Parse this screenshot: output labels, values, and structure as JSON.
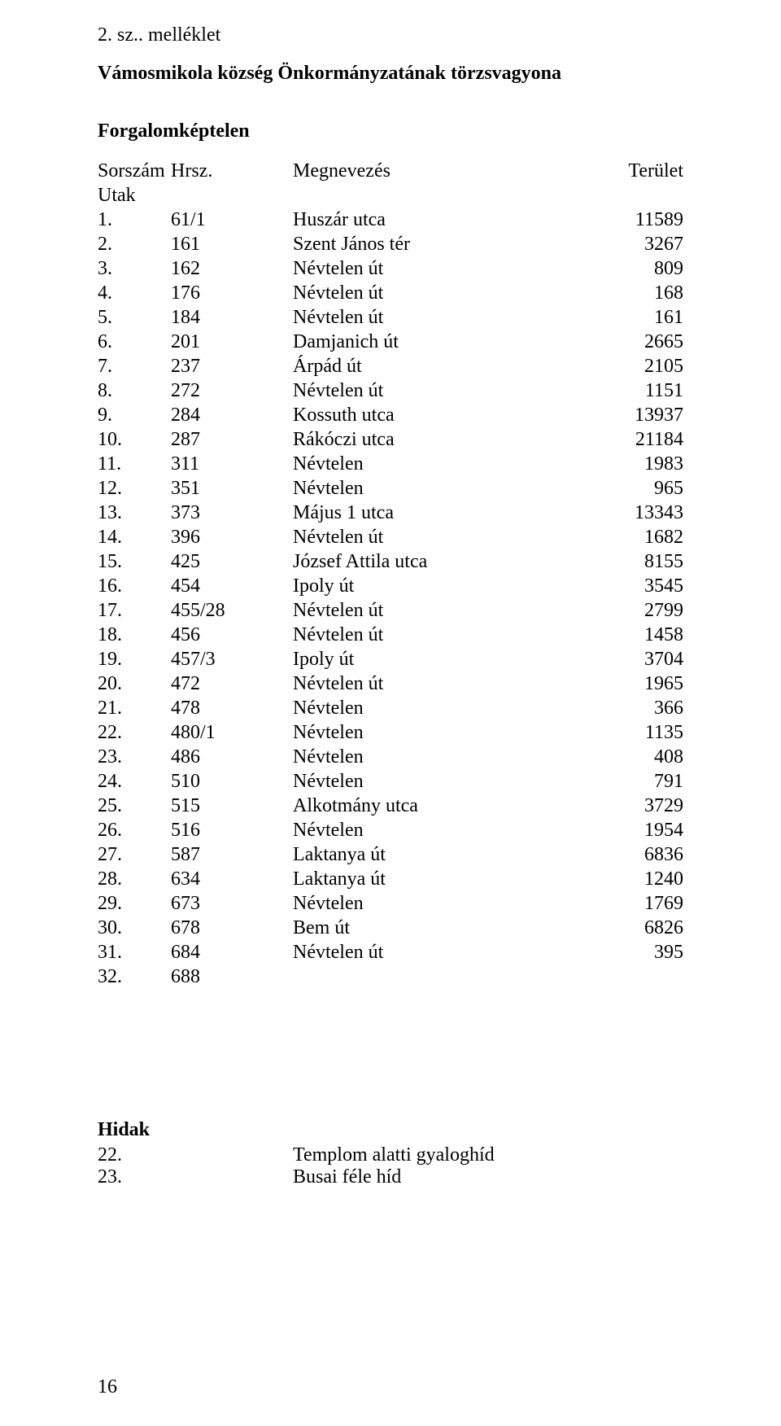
{
  "page": {
    "number": "16",
    "attachment_line": "2. sz.. melléklet",
    "title": "Vámosmikola község Önkormányzatának törzsvagyona",
    "section": "Forgalomképtelen"
  },
  "colors": {
    "text": "#000000",
    "background": "#ffffff"
  },
  "table": {
    "headers": {
      "sorszam": "Sorszám",
      "hrsz": "Hrsz.",
      "megnevezes": "Megnevezés",
      "terulet": "Terület"
    },
    "utak_label": "Utak",
    "rows": [
      {
        "n": "1.",
        "hrsz": "61/1",
        "name": "Huszár utca",
        "area": "11589"
      },
      {
        "n": "2.",
        "hrsz": "161",
        "name": "Szent János tér",
        "area": "3267"
      },
      {
        "n": "3.",
        "hrsz": "162",
        "name": "Névtelen út",
        "area": "809"
      },
      {
        "n": "4.",
        "hrsz": "176",
        "name": "Névtelen út",
        "area": "168"
      },
      {
        "n": "5.",
        "hrsz": "184",
        "name": "Névtelen út",
        "area": "161"
      },
      {
        "n": "6.",
        "hrsz": "201",
        "name": "Damjanich út",
        "area": "2665"
      },
      {
        "n": "7.",
        "hrsz": "237",
        "name": "Árpád út",
        "area": "2105"
      },
      {
        "n": "8.",
        "hrsz": "272",
        "name": "Névtelen út",
        "area": "1151"
      },
      {
        "n": "9.",
        "hrsz": "284",
        "name": "Kossuth utca",
        "area": "13937"
      },
      {
        "n": "10.",
        "hrsz": "287",
        "name": "Rákóczi utca",
        "area": "21184"
      },
      {
        "n": "11.",
        "hrsz": "311",
        "name": "Névtelen",
        "area": "1983"
      },
      {
        "n": "12.",
        "hrsz": "351",
        "name": "Névtelen",
        "area": "965"
      },
      {
        "n": "13.",
        "hrsz": "373",
        "name": "Május 1 utca",
        "area": "13343"
      },
      {
        "n": "14.",
        "hrsz": "396",
        "name": "Névtelen út",
        "area": "1682"
      },
      {
        "n": "15.",
        "hrsz": "425",
        "name": "József Attila utca",
        "area": "8155"
      },
      {
        "n": "16.",
        "hrsz": "454",
        "name": "Ipoly út",
        "area": "3545"
      },
      {
        "n": "17.",
        "hrsz": "455/28",
        "name": "Névtelen út",
        "area": "2799"
      },
      {
        "n": "18.",
        "hrsz": "456",
        "name": "Névtelen út",
        "area": "1458"
      },
      {
        "n": "19.",
        "hrsz": "457/3",
        "name": "Ipoly út",
        "area": "3704"
      },
      {
        "n": "20.",
        "hrsz": "472",
        "name": "Névtelen út",
        "area": "1965"
      },
      {
        "n": "21.",
        "hrsz": "478",
        "name": "Névtelen",
        "area": "366"
      },
      {
        "n": "22.",
        "hrsz": "480/1",
        "name": "Névtelen",
        "area": "1135"
      },
      {
        "n": "23.",
        "hrsz": "486",
        "name": "Névtelen",
        "area": "408"
      },
      {
        "n": "24.",
        "hrsz": "510",
        "name": "Névtelen",
        "area": "791"
      },
      {
        "n": "25.",
        "hrsz": "515",
        "name": "Alkotmány utca",
        "area": "3729"
      },
      {
        "n": "26.",
        "hrsz": "516",
        "name": "Névtelen",
        "area": "1954"
      },
      {
        "n": "27.",
        "hrsz": "587",
        "name": "Laktanya út",
        "area": "6836"
      },
      {
        "n": "28.",
        "hrsz": "634",
        "name": "Laktanya út",
        "area": "1240"
      },
      {
        "n": "29.",
        "hrsz": "673",
        "name": "Névtelen",
        "area": "1769"
      },
      {
        "n": "30.",
        "hrsz": "678",
        "name": "Bem út",
        "area": "6826"
      },
      {
        "n": "31.",
        "hrsz": "684",
        "name": "Névtelen út",
        "area": "395"
      },
      {
        "n": "32.",
        "hrsz": "688",
        "name": "",
        "area": ""
      }
    ]
  },
  "hidak": {
    "title": "Hidak",
    "rows": [
      {
        "n": "22.",
        "label": "Templom alatti gyaloghíd"
      },
      {
        "n": "23.",
        "label": "Busai féle híd"
      }
    ]
  }
}
